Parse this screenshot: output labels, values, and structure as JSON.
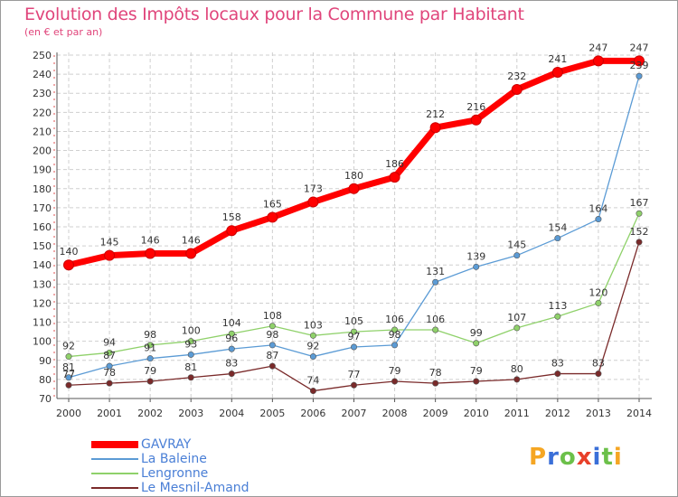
{
  "title": "Evolution des Impôts locaux pour la Commune par Habitant",
  "subtitle": "(en € et par an)",
  "logo": {
    "text": "Proxiti",
    "letter_colors": [
      "#f5a623",
      "#3a6fd8",
      "#6cc04a",
      "#e8402a",
      "#3a6fd8",
      "#6cc04a",
      "#f5a623"
    ]
  },
  "chart_data": {
    "type": "line",
    "x": [
      "2000",
      "2001",
      "2002",
      "2003",
      "2004",
      "2005",
      "2006",
      "2007",
      "2008",
      "2009",
      "2010",
      "2011",
      "2012",
      "2013",
      "2014"
    ],
    "ylim": [
      70,
      250
    ],
    "yticks": [
      70,
      80,
      90,
      100,
      110,
      120,
      130,
      140,
      150,
      160,
      170,
      180,
      190,
      200,
      210,
      220,
      230,
      240,
      250
    ],
    "grid": true,
    "legend_position": "bottom-left",
    "series": [
      {
        "name": "GAVRAY",
        "color": "#ff0000",
        "values": [
          140,
          145,
          146,
          146,
          158,
          165,
          173,
          180,
          186,
          212,
          216,
          232,
          241,
          247,
          247
        ]
      },
      {
        "name": "La Baleine",
        "color": "#5b9bd5",
        "values": [
          81,
          87,
          91,
          93,
          96,
          98,
          92,
          97,
          98,
          131,
          139,
          145,
          154,
          164,
          239
        ]
      },
      {
        "name": "Lengronne",
        "color": "#8fd16a",
        "values": [
          92,
          94,
          98,
          100,
          104,
          108,
          103,
          105,
          106,
          106,
          99,
          107,
          113,
          120,
          167
        ]
      },
      {
        "name": "Le Mesnil-Amand",
        "color": "#7a2a2a",
        "values": [
          77,
          78,
          79,
          81,
          83,
          87,
          74,
          77,
          79,
          78,
          79,
          80,
          83,
          83,
          152
        ]
      }
    ]
  }
}
